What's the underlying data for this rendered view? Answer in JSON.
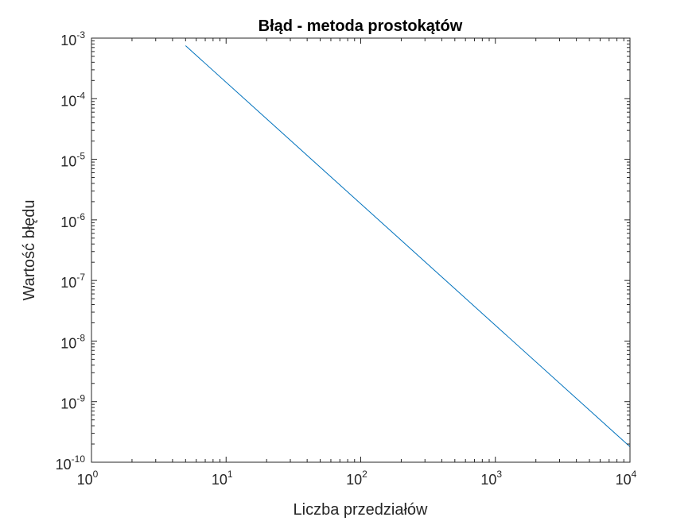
{
  "chart_data": {
    "type": "line",
    "title": "Błąd - metoda prostokątów",
    "xlabel": "Liczba przedziałów",
    "ylabel": "Wartość błędu",
    "xscale": "log",
    "yscale": "log",
    "xlim": [
      1,
      10000
    ],
    "ylim": [
      1e-10,
      0.001
    ],
    "grid": false,
    "x_ticks": [
      {
        "base": "10",
        "exp": "0"
      },
      {
        "base": "10",
        "exp": "1"
      },
      {
        "base": "10",
        "exp": "2"
      },
      {
        "base": "10",
        "exp": "3"
      },
      {
        "base": "10",
        "exp": "4"
      }
    ],
    "y_ticks": [
      {
        "base": "10",
        "exp": "-10"
      },
      {
        "base": "10",
        "exp": "-9"
      },
      {
        "base": "10",
        "exp": "-8"
      },
      {
        "base": "10",
        "exp": "-7"
      },
      {
        "base": "10",
        "exp": "-6"
      },
      {
        "base": "10",
        "exp": "-5"
      },
      {
        "base": "10",
        "exp": "-4"
      },
      {
        "base": "10",
        "exp": "-3"
      }
    ],
    "series": [
      {
        "color": "#0072bd",
        "x": [
          5,
          10000
        ],
        "y": [
          0.00075,
          1.8e-10
        ]
      }
    ]
  }
}
